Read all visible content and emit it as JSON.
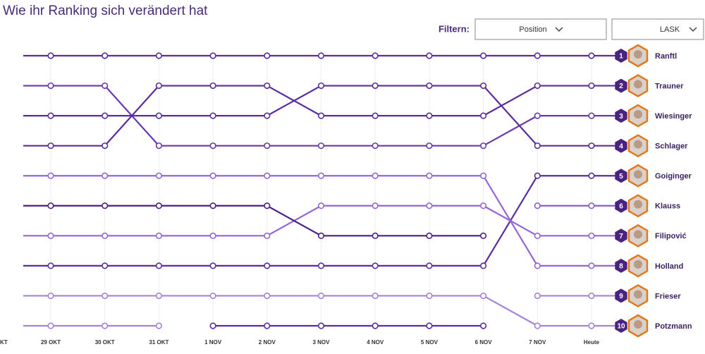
{
  "filters": {
    "label": "Filtern:",
    "options": [
      "Position",
      "LASK"
    ]
  },
  "chart_data": {
    "type": "bump",
    "title": "Wie ihr Ranking sich verändert hat",
    "categories": [
      "KT",
      "29 OKT",
      "30 OKT",
      "31 OKT",
      "1 NOV",
      "2 NOV",
      "3 NOV",
      "4 NOV",
      "5 NOV",
      "6 NOV",
      "7 NOV",
      "Heute"
    ],
    "ylim": [
      1,
      10
    ],
    "y_inverted": true,
    "grid": true,
    "series": [
      {
        "name": "Ranftl",
        "color": "#5b2c9f",
        "values": [
          1,
          1,
          1,
          1,
          1,
          1,
          1,
          1,
          1,
          1,
          1,
          1
        ]
      },
      {
        "name": "Trauner",
        "color": "#5b2c9f",
        "values": [
          4,
          4,
          4,
          2,
          2,
          2,
          3,
          3,
          3,
          3,
          2,
          2
        ]
      },
      {
        "name": "Wiesinger",
        "color": "#6a38b0",
        "values": [
          2,
          2,
          2,
          4,
          4,
          4,
          4,
          4,
          4,
          4,
          3,
          3
        ]
      },
      {
        "name": "Schlager",
        "color": "#5b2c9f",
        "values": [
          3,
          3,
          3,
          3,
          3,
          3,
          2,
          2,
          2,
          2,
          4,
          4
        ]
      },
      {
        "name": "Goiginger",
        "color": "#5b2c9f",
        "values": [
          8,
          8,
          8,
          8,
          8,
          8,
          8,
          8,
          8,
          8,
          5,
          5
        ]
      },
      {
        "name": "Klauss",
        "color": "#8a5cd0",
        "values": [
          null,
          null,
          null,
          null,
          null,
          null,
          null,
          null,
          null,
          null,
          6,
          6
        ]
      },
      {
        "name": "Filipović",
        "color": "#9466d6",
        "values": [
          7,
          7,
          7,
          7,
          7,
          7,
          6,
          6,
          6,
          6,
          7,
          7
        ]
      },
      {
        "name": "Holland",
        "color": "#9466d6",
        "values": [
          5,
          5,
          5,
          5,
          5,
          5,
          5,
          5,
          5,
          5,
          8,
          8
        ]
      },
      {
        "name": "Frieser",
        "color": "#a582dc",
        "values": [
          null,
          null,
          null,
          null,
          null,
          null,
          null,
          null,
          null,
          null,
          9,
          9
        ]
      },
      {
        "name": "Potzmann",
        "color": "#a582dc",
        "values": [
          9,
          9,
          9,
          9,
          9,
          9,
          9,
          9,
          9,
          9,
          10,
          10
        ]
      },
      {
        "color": "#4a1f86",
        "values": [
          6,
          6,
          6,
          6,
          6,
          6,
          7,
          7,
          7,
          7,
          null,
          null
        ]
      },
      {
        "color": "#a582dc",
        "values": [
          10,
          10,
          10,
          10,
          null,
          null,
          null,
          null,
          null,
          null,
          null,
          null
        ]
      },
      {
        "color": "#5b2c9f",
        "values": [
          null,
          null,
          null,
          null,
          10,
          10,
          10,
          10,
          10,
          10,
          null,
          null
        ]
      }
    ]
  }
}
